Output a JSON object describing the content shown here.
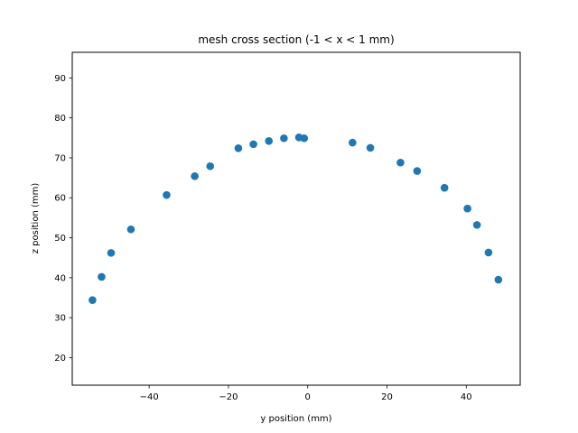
{
  "chart_data": {
    "type": "scatter",
    "title": "mesh cross section (-1 < x < 1 mm)",
    "xlabel": "y position (mm)",
    "ylabel": "z position (mm)",
    "xlim": [
      -59.4,
      53.6
    ],
    "ylim": [
      13.1,
      96.4
    ],
    "xticks": [
      -40,
      -20,
      0,
      20,
      40
    ],
    "yticks": [
      20,
      30,
      40,
      50,
      60,
      70,
      80,
      90
    ],
    "grid": false,
    "marker_color": "#1f77b4",
    "points": [
      {
        "x": -54.3,
        "y": 34.4
      },
      {
        "x": -52.0,
        "y": 40.2
      },
      {
        "x": -49.6,
        "y": 46.2
      },
      {
        "x": -44.6,
        "y": 52.1
      },
      {
        "x": -35.6,
        "y": 60.7
      },
      {
        "x": -28.5,
        "y": 65.4
      },
      {
        "x": -24.6,
        "y": 67.9
      },
      {
        "x": -17.5,
        "y": 72.4
      },
      {
        "x": -13.7,
        "y": 73.4
      },
      {
        "x": -9.8,
        "y": 74.2
      },
      {
        "x": -6.0,
        "y": 74.9
      },
      {
        "x": -2.2,
        "y": 75.1
      },
      {
        "x": -0.9,
        "y": 74.9
      },
      {
        "x": 11.3,
        "y": 73.8
      },
      {
        "x": 15.8,
        "y": 72.5
      },
      {
        "x": 23.4,
        "y": 68.8
      },
      {
        "x": 27.6,
        "y": 66.7
      },
      {
        "x": 34.5,
        "y": 62.5
      },
      {
        "x": 40.3,
        "y": 57.3
      },
      {
        "x": 42.7,
        "y": 53.2
      },
      {
        "x": 45.6,
        "y": 46.3
      },
      {
        "x": 48.1,
        "y": 39.5
      }
    ]
  }
}
